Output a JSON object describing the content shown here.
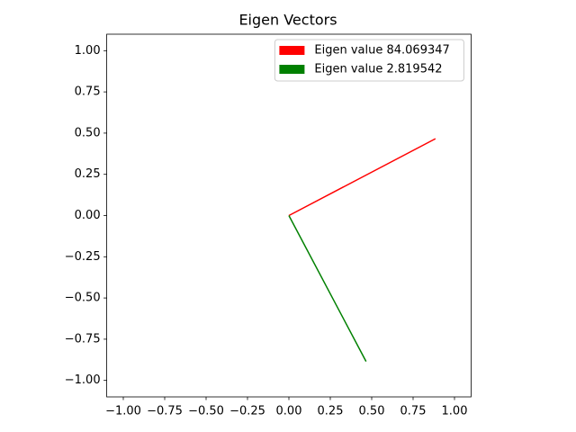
{
  "chart_data": {
    "type": "vector",
    "title": "Eigen Vectors",
    "series": [
      {
        "name": "Eigen value 84.069347",
        "color": "#ff0000",
        "x": [
          0,
          0.885
        ],
        "values": [
          0,
          0.466
        ]
      },
      {
        "name": "Eigen value 2.819542",
        "color": "#008000",
        "x": [
          0,
          0.466
        ],
        "values": [
          0,
          -0.885
        ]
      }
    ],
    "xlim": [
      -1.1,
      1.1
    ],
    "ylim": [
      -1.1,
      1.1
    ],
    "xticks": [
      {
        "value": -1,
        "label": "−1.00"
      },
      {
        "value": -0.75,
        "label": "−0.75"
      },
      {
        "value": -0.5,
        "label": "−0.50"
      },
      {
        "value": -0.25,
        "label": "−0.25"
      },
      {
        "value": 0,
        "label": "0.00"
      },
      {
        "value": 0.25,
        "label": "0.25"
      },
      {
        "value": 0.5,
        "label": "0.50"
      },
      {
        "value": 0.75,
        "label": "0.75"
      },
      {
        "value": 1,
        "label": "1.00"
      }
    ],
    "yticks": [
      {
        "value": -1,
        "label": "−1.00"
      },
      {
        "value": -0.75,
        "label": "−0.75"
      },
      {
        "value": -0.5,
        "label": "−0.50"
      },
      {
        "value": -0.25,
        "label": "−0.25"
      },
      {
        "value": 0,
        "label": "0.00"
      },
      {
        "value": 0.25,
        "label": "0.25"
      },
      {
        "value": 0.5,
        "label": "0.50"
      },
      {
        "value": 0.75,
        "label": "0.75"
      },
      {
        "value": 1,
        "label": "1.00"
      }
    ],
    "legend": "upper right"
  }
}
